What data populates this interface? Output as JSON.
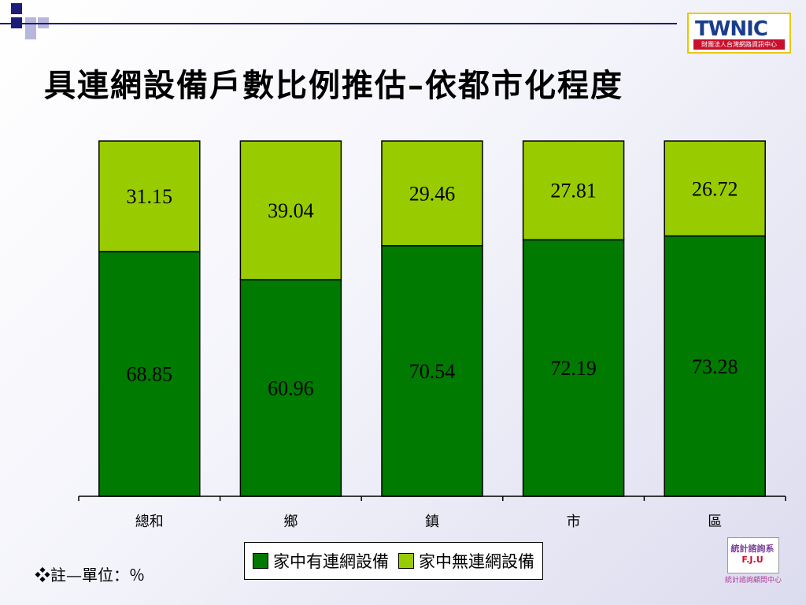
{
  "slide": {
    "title": "具連網設備戶數比例推估–依都市化程度",
    "note": "❖註—單位：％"
  },
  "logos": {
    "twnic_word": "TWNIC",
    "twnic_sub": "財團法人台灣網路資訊中心",
    "fiu_line1": "統計諮詢系",
    "fiu_line2": "F.J.U",
    "fiu_caption": "統計諮詢顧問中心"
  },
  "chart_data": {
    "type": "bar",
    "stacked": true,
    "categories": [
      "總和",
      "鄉",
      "鎮",
      "市",
      "區"
    ],
    "series": [
      {
        "name": "家中有連網設備",
        "color": "#007a00",
        "values": [
          68.85,
          60.96,
          70.54,
          72.19,
          73.28
        ]
      },
      {
        "name": "家中無連網設備",
        "color": "#99cc00",
        "values": [
          31.15,
          39.04,
          29.46,
          27.81,
          26.72
        ]
      }
    ],
    "ylim": [
      0,
      100
    ],
    "grid": false,
    "legend_position": "bottom"
  },
  "colors": {
    "accent": "#1c1c7a",
    "bar_border": "#000000"
  }
}
